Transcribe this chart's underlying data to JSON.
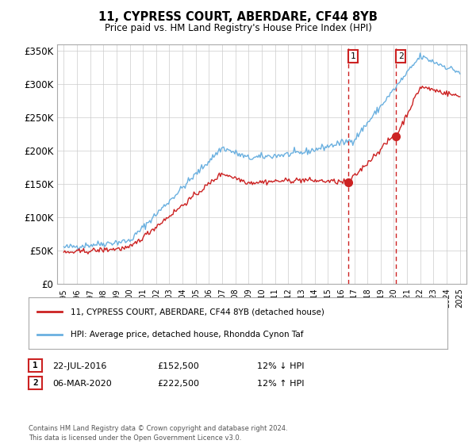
{
  "title": "11, CYPRESS COURT, ABERDARE, CF44 8YB",
  "subtitle": "Price paid vs. HM Land Registry's House Price Index (HPI)",
  "legend_line1": "11, CYPRESS COURT, ABERDARE, CF44 8YB (detached house)",
  "legend_line2": "HPI: Average price, detached house, Rhondda Cynon Taf",
  "annotation1_label": "1",
  "annotation1_date": "22-JUL-2016",
  "annotation1_price": "£152,500",
  "annotation1_hpi": "12% ↓ HPI",
  "annotation1_year": 2016.55,
  "annotation1_value": 152500,
  "annotation2_label": "2",
  "annotation2_date": "06-MAR-2020",
  "annotation2_price": "£222,500",
  "annotation2_hpi": "12% ↑ HPI",
  "annotation2_year": 2020.18,
  "annotation2_value": 222500,
  "footer": "Contains HM Land Registry data © Crown copyright and database right 2024.\nThis data is licensed under the Open Government Licence v3.0.",
  "hpi_color": "#6ab0e0",
  "price_color": "#cc2222",
  "dashed_line_color": "#cc2222",
  "background_color": "#ffffff",
  "grid_color": "#cccccc",
  "ylim": [
    0,
    360000
  ],
  "xlim_start": 1994.5,
  "xlim_end": 2025.5,
  "yticks": [
    0,
    50000,
    100000,
    150000,
    200000,
    250000,
    300000,
    350000
  ],
  "xticks": [
    1995,
    1996,
    1997,
    1998,
    1999,
    2000,
    2001,
    2002,
    2003,
    2004,
    2005,
    2006,
    2007,
    2008,
    2009,
    2010,
    2011,
    2012,
    2013,
    2014,
    2015,
    2016,
    2017,
    2018,
    2019,
    2020,
    2021,
    2022,
    2023,
    2024,
    2025
  ]
}
